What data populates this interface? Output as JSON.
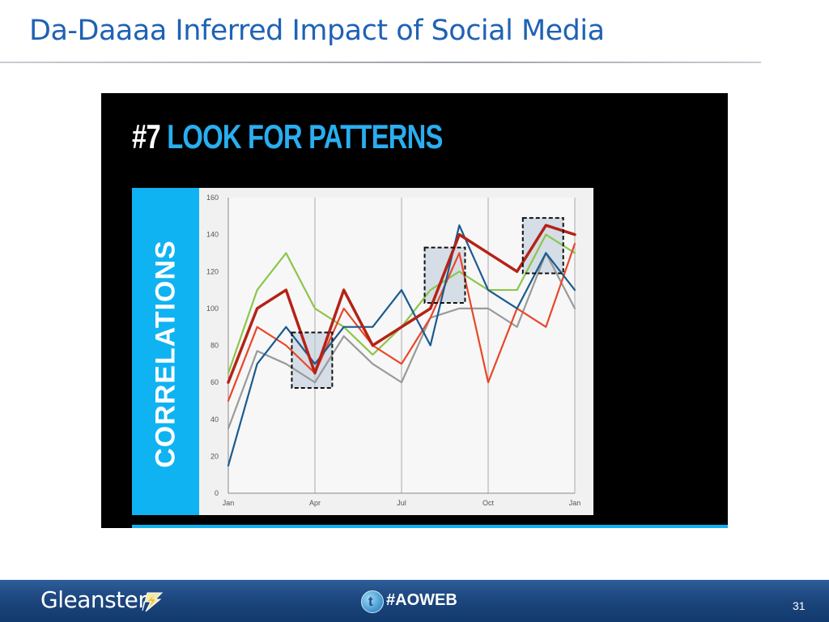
{
  "slide": {
    "title": "Da-Daaaa Inferred Impact of Social Media",
    "page_number": "31"
  },
  "screenshot": {
    "heading_number": "#7",
    "heading_text": "LOOK FOR PATTERNS",
    "side_label": "CORRELATIONS"
  },
  "footer": {
    "logo_text": "Gleanster",
    "twitter_icon": "twitter-bird-icon",
    "hashtag": "#AOWEB"
  },
  "colors": {
    "title_blue": "#1f62b4",
    "heading_blue": "#29aef0",
    "panel_cyan": "#0fb3f2",
    "footer_navy": "#1c467e"
  },
  "chart_data": {
    "type": "line",
    "title": "",
    "xlabel": "",
    "ylabel": "",
    "x": [
      0,
      1,
      2,
      3,
      4,
      5,
      6,
      7,
      8,
      9,
      10,
      11,
      12
    ],
    "x_tick_labels": [
      "Jan",
      "Apr",
      "Jul",
      "Oct",
      "Jan"
    ],
    "x_tick_positions": [
      0,
      3,
      6,
      9,
      12
    ],
    "y_tick_labels": [
      "0",
      "20",
      "40",
      "60",
      "80",
      "100",
      "120",
      "140",
      "160"
    ],
    "ylim": [
      0,
      160
    ],
    "xlim": [
      0,
      12
    ],
    "grid": "vertical lines at quarter ticks",
    "legend": "none",
    "series": [
      {
        "color": "#8dc54b",
        "values": [
          65,
          110,
          130,
          100,
          90,
          75,
          90,
          110,
          120,
          110,
          110,
          140,
          130
        ]
      },
      {
        "color": "#9a9a9a",
        "values": [
          35,
          77,
          70,
          60,
          85,
          70,
          60,
          95,
          100,
          100,
          90,
          130,
          100
        ]
      },
      {
        "color": "#e8472a",
        "values": [
          50,
          90,
          80,
          65,
          100,
          80,
          70,
          95,
          130,
          60,
          100,
          90,
          135
        ]
      },
      {
        "color": "#1a5b8e",
        "values": [
          15,
          70,
          90,
          70,
          90,
          90,
          110,
          80,
          145,
          110,
          100,
          130,
          110
        ]
      },
      {
        "color": "#b52216",
        "width": 3.5,
        "values": [
          60,
          100,
          110,
          65,
          110,
          80,
          90,
          100,
          140,
          130,
          120,
          145,
          140
        ]
      }
    ],
    "highlight_boxes": [
      {
        "x_range": [
          2.2,
          3.6
        ],
        "y_range": [
          57,
          87
        ]
      },
      {
        "x_range": [
          6.8,
          8.2
        ],
        "y_range": [
          103,
          133
        ]
      },
      {
        "x_range": [
          10.2,
          11.6
        ],
        "y_range": [
          119,
          149
        ]
      }
    ]
  }
}
